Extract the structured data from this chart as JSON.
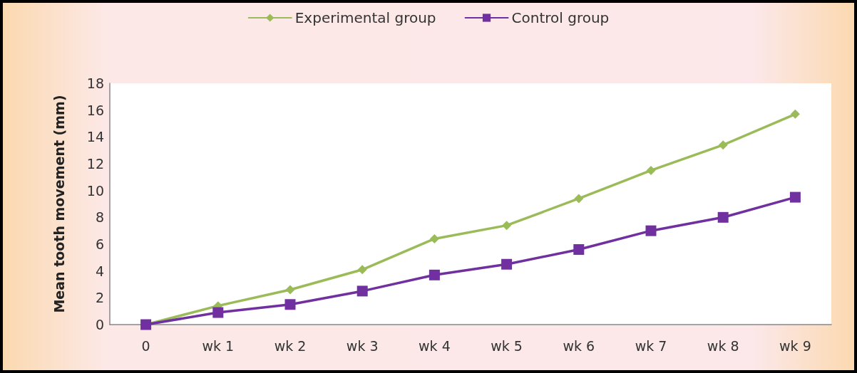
{
  "chart_data": {
    "type": "line",
    "ylabel": "Mean tooth movement (mm)",
    "categories": [
      "0",
      "wk 1",
      "wk 2",
      "wk 3",
      "wk 4",
      "wk 5",
      "wk 6",
      "wk 7",
      "wk 8",
      "wk 9"
    ],
    "series": [
      {
        "name": "Experimental group",
        "color": "#9bbb59",
        "marker": "diamond",
        "values": [
          0,
          1.4,
          2.6,
          4.1,
          6.4,
          7.4,
          9.4,
          11.5,
          13.4,
          15.7
        ]
      },
      {
        "name": "Control group",
        "color": "#7030a0",
        "marker": "square",
        "values": [
          0,
          0.9,
          1.5,
          2.5,
          3.7,
          4.5,
          5.6,
          7.0,
          8.0,
          9.5
        ]
      }
    ],
    "ylim": [
      0,
      18
    ],
    "yticks": [
      0,
      2,
      4,
      6,
      8,
      10,
      12,
      14,
      16,
      18
    ],
    "grid": false,
    "legend": "top"
  }
}
